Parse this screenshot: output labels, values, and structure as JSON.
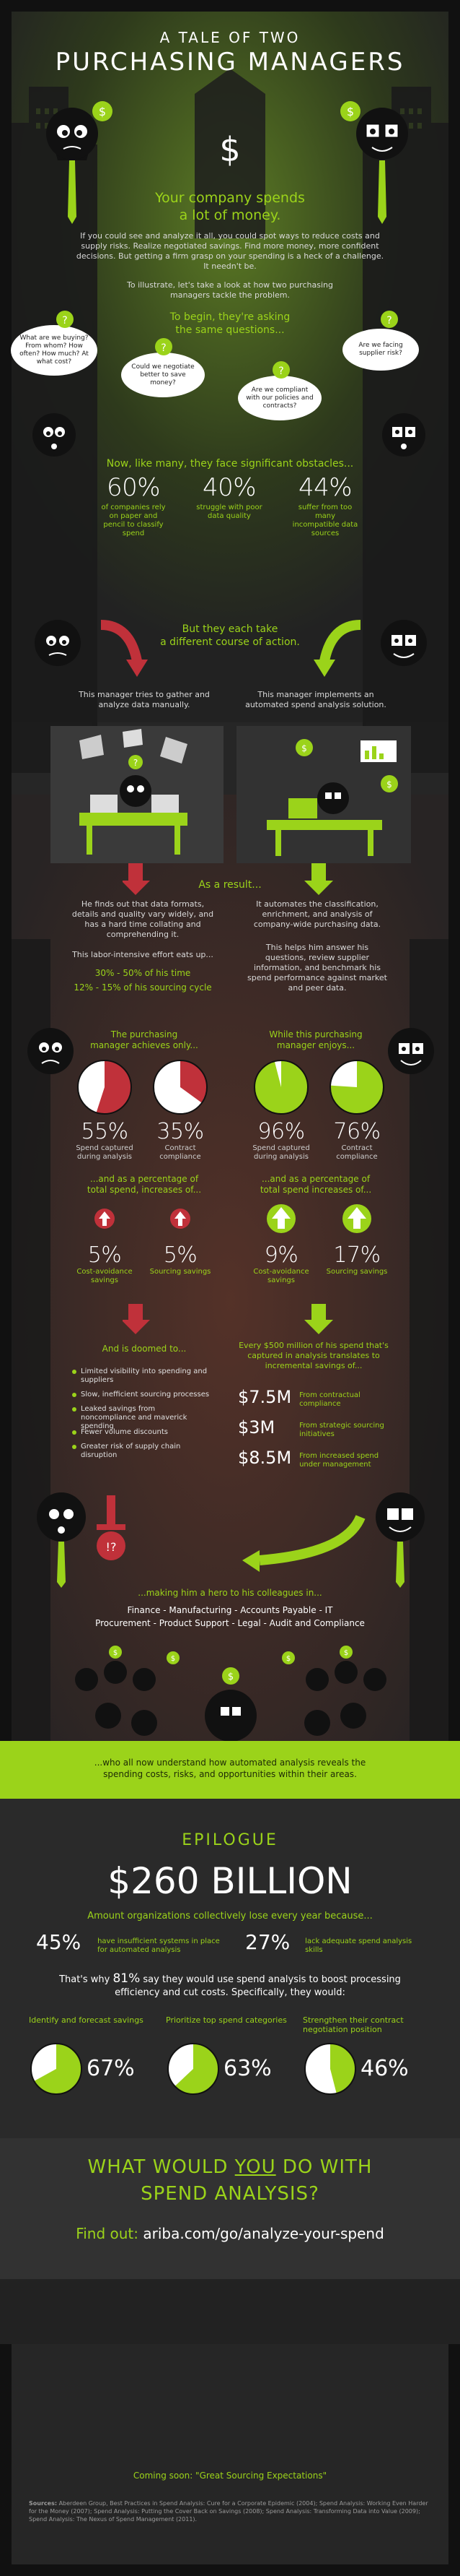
{
  "header": {
    "line1": "A TALE OF TWO",
    "line2": "PURCHASING MANAGERS"
  },
  "intro": {
    "headline_1": "Your company spends",
    "headline_2": "a lot of money.",
    "paragraph_1": "If you could see and analyze it all, you could spot ways to reduce costs and supply risks. Realize negotiated savings. Find more money, more confident decisions. But getting a firm grasp on your spending is a heck of a challenge. It needn't be.",
    "paragraph_2": "To illustrate, let's take a look at how two purchasing managers tackle the problem."
  },
  "questions": {
    "title_1": "To begin, they're asking",
    "title_2": "the same questions...",
    "q1": "What are we buying? From whom? How often? How much? At what cost?",
    "q2": "Could we negotiate better to save money?",
    "q3": "Are we compliant with our policies and contracts?",
    "q4": "Are we facing supplier risk?"
  },
  "obstacles": {
    "title": "Now, like many, they face significant obstacles...",
    "items": [
      {
        "pct": "60%",
        "text": "of companies rely on paper and pencil to classify spend"
      },
      {
        "pct": "40%",
        "text": "struggle with poor data quality"
      },
      {
        "pct": "44%",
        "text": "suffer from too many incompatible data sources"
      }
    ]
  },
  "course": {
    "title_1": "But they each take",
    "title_2": "a different course of action.",
    "left": "This manager tries to gather and analyze data manually.",
    "right": "This manager implements an automated spend analysis solution."
  },
  "result": {
    "title": "As a result...",
    "left_p1": "He finds out that data formats, details and quality vary widely, and has a hard time collating and comprehending it.",
    "left_p2": "This labor-intensive effort eats up...",
    "left_stat1": "30% - 50% of his time",
    "left_stat2": "12% - 15% of his sourcing cycle",
    "right_p1": "It automates the classification, enrichment, and analysis of company-wide purchasing data.",
    "right_p2": "This helps him answer his questions, review supplier information, and benchmark his spend performance against market and peer data."
  },
  "achieve": {
    "left_title_1": "The purchasing",
    "left_title_2": "manager achieves only...",
    "right_title_1": "While this purchasing",
    "right_title_2": "manager enjoys...",
    "left_sub_1": "...and as a percentage of",
    "left_sub_2": "total spend, increases of...",
    "right_sub_1": "...and as a percentage of",
    "right_sub_2": "total spend increases of..."
  },
  "chart_data": [
    {
      "type": "pie",
      "title": "",
      "categories": [
        "Spend captured during analysis"
      ],
      "values": [
        55
      ],
      "labels": [
        "55%"
      ],
      "caption": "Spend captured during analysis"
    },
    {
      "type": "pie",
      "title": "",
      "categories": [
        "Contract compliance"
      ],
      "values": [
        35
      ],
      "labels": [
        "35%"
      ],
      "caption": "Contract compliance"
    },
    {
      "type": "pie",
      "title": "",
      "categories": [
        "Spend captured during analysis"
      ],
      "values": [
        96
      ],
      "labels": [
        "96%"
      ],
      "caption": "Spend captured during analysis"
    },
    {
      "type": "pie",
      "title": "",
      "categories": [
        "Contract compliance"
      ],
      "values": [
        76
      ],
      "labels": [
        "76%"
      ],
      "caption": "Contract compliance"
    },
    {
      "type": "pie",
      "title": "",
      "categories": [
        "Identify and forecast savings"
      ],
      "values": [
        67
      ],
      "labels": [
        "67%"
      ],
      "caption": "Identify and forecast savings"
    },
    {
      "type": "pie",
      "title": "",
      "categories": [
        "Prioritize top spend categories"
      ],
      "values": [
        63
      ],
      "labels": [
        "63%"
      ],
      "caption": "Prioritize top spend categories"
    },
    {
      "type": "pie",
      "title": "",
      "categories": [
        "Strengthen their contract negotiation position"
      ],
      "values": [
        46
      ],
      "labels": [
        "46%"
      ],
      "caption": "Strengthen their contract negotiation position"
    }
  ],
  "savings": {
    "left": [
      {
        "pct": "5%",
        "label": "Cost-avoidance savings"
      },
      {
        "pct": "5%",
        "label": "Sourcing savings"
      }
    ],
    "right": [
      {
        "pct": "9%",
        "label": "Cost-avoidance savings"
      },
      {
        "pct": "17%",
        "label": "Sourcing savings"
      }
    ]
  },
  "doomed": {
    "title": "And is doomed to...",
    "bullets": [
      "Limited visibility into spending and suppliers",
      "Slow, inefficient sourcing processes",
      "Leaked savings from noncompliance and maverick spending",
      "Fewer volume discounts",
      "Greater risk of supply chain disruption"
    ]
  },
  "translates": {
    "title": "Every $500 million of his spend that's captured in analysis translates to incremental savings of...",
    "items": [
      {
        "amount": "$7.5M",
        "label": "From contractual compliance"
      },
      {
        "amount": "$3M",
        "label": "From strategic sourcing initiatives"
      },
      {
        "amount": "$8.5M",
        "label": "From increased spend under management"
      }
    ]
  },
  "hero": {
    "title": "...making him a hero to his colleagues in...",
    "line1": "Finance - Manufacturing - Accounts Payable - IT",
    "line2": "Procurement - Product Support - Legal - Audit and Compliance",
    "closing": "...who all now understand how automated analysis reveals the spending costs, risks, and opportunities within their areas."
  },
  "epilogue": {
    "label": "EPILOGUE",
    "big": "$260 BILLION",
    "sub": "Amount organizations collectively lose every year because...",
    "stat1_pct": "45%",
    "stat1_text": "have insufficient systems in place for automated analysis",
    "stat2_pct": "27%",
    "stat2_text": "lack adequate spend analysis skills",
    "that_pre": "That's why ",
    "that_pct": "81%",
    "that_post": " say they would use spend analysis to boost processing efficiency and cut costs. Specifically, they would:"
  },
  "cta": {
    "line1_pre": "WHAT WOULD ",
    "line1_you": "YOU",
    "line1_post": " DO WITH",
    "line2": "SPEND ANALYSIS?",
    "find_label": "Find out:",
    "url": "ariba.com/go/analyze-your-spend",
    "coming": "Coming soon: \"Great Sourcing Expectations\""
  },
  "footer": {
    "sources_label": "Sources:",
    "sources_text": "Aberdeen Group, Best Practices in Spend Analysis: Cure for a Corporate Epidemic (2004); Spend Analysis: Working Even Harder for the Money (2007); Spend Analysis: Putting the Cover Back on Savings (2008); Spend Analysis: Transforming Data into Value (2009); Spend Analysis: The Nexus of Spend Management (2011)."
  },
  "colors": {
    "accent": "#9bd31a",
    "red": "#c0313a",
    "dark": "#252525"
  }
}
